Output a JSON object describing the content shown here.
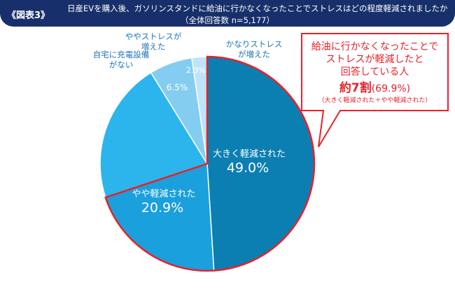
{
  "header": {
    "figure_label": "《図表3》",
    "title_line1": "日産EVを購入後、ガソリンスタンドに給油に行かなくなったことでストレスはどの程度軽減されましたか",
    "title_line2": "（全体回答数 n=5,177）"
  },
  "chart_data": {
    "type": "pie",
    "unit": "%",
    "slices": [
      {
        "label": "大きく軽減された",
        "value": 49.0,
        "value_text": "49.0%",
        "color": "#0b7fb2"
      },
      {
        "label": "やや軽減された",
        "value": 20.9,
        "value_text": "20.9%",
        "color": "#1aa0dc"
      },
      {
        "label": "自宅に充電設備がない",
        "label_lines": [
          "自宅に充電設備",
          "がない"
        ],
        "value": 21.3,
        "value_text": "",
        "color": "#2bb5ec"
      },
      {
        "label": "ややストレスが増えた",
        "label_lines": [
          "ややストレスが",
          "増えた"
        ],
        "value": 6.5,
        "value_text": "6.5%",
        "color": "#85cdf0"
      },
      {
        "label": "かなりストレスが増えた",
        "label_lines": [
          "かなりストレス",
          "が増えた"
        ],
        "value": 2.3,
        "value_text": "2.3%",
        "color": "#bfe4f7"
      }
    ]
  },
  "callout": {
    "line1": "給油に行かなくなったことで",
    "line2": "ストレスが軽減したと",
    "line3": "回答している人",
    "big_value": "約7割",
    "pct": "(69.9%)",
    "note": "（大きく軽減された＋やや軽減された）",
    "accent_color": "#e8212a"
  }
}
